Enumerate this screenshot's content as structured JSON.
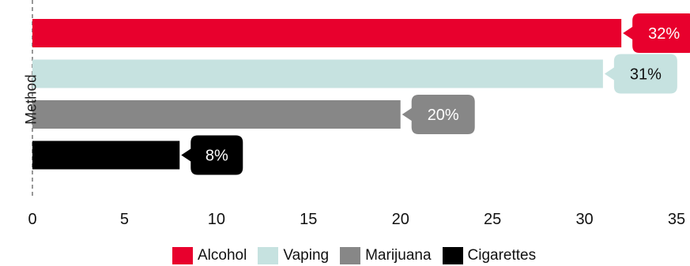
{
  "chart_data": {
    "type": "bar",
    "orientation": "horizontal",
    "ylabel": "Method",
    "xlim": [
      0,
      35
    ],
    "xticks": [
      0,
      5,
      10,
      15,
      20,
      25,
      30,
      35
    ],
    "grid": false,
    "legend_position": "bottom",
    "categories": [
      "Alcohol",
      "Vaping",
      "Marijuana",
      "Cigarettes"
    ],
    "values": [
      32,
      31,
      20,
      8
    ],
    "data_labels": [
      "32%",
      "31%",
      "20%",
      "8%"
    ],
    "colors": [
      "#e8002d",
      "#c6e2e0",
      "#878787",
      "#000000"
    ],
    "label_text_colors": [
      "#ffffff",
      "#111111",
      "#ffffff",
      "#ffffff"
    ]
  }
}
